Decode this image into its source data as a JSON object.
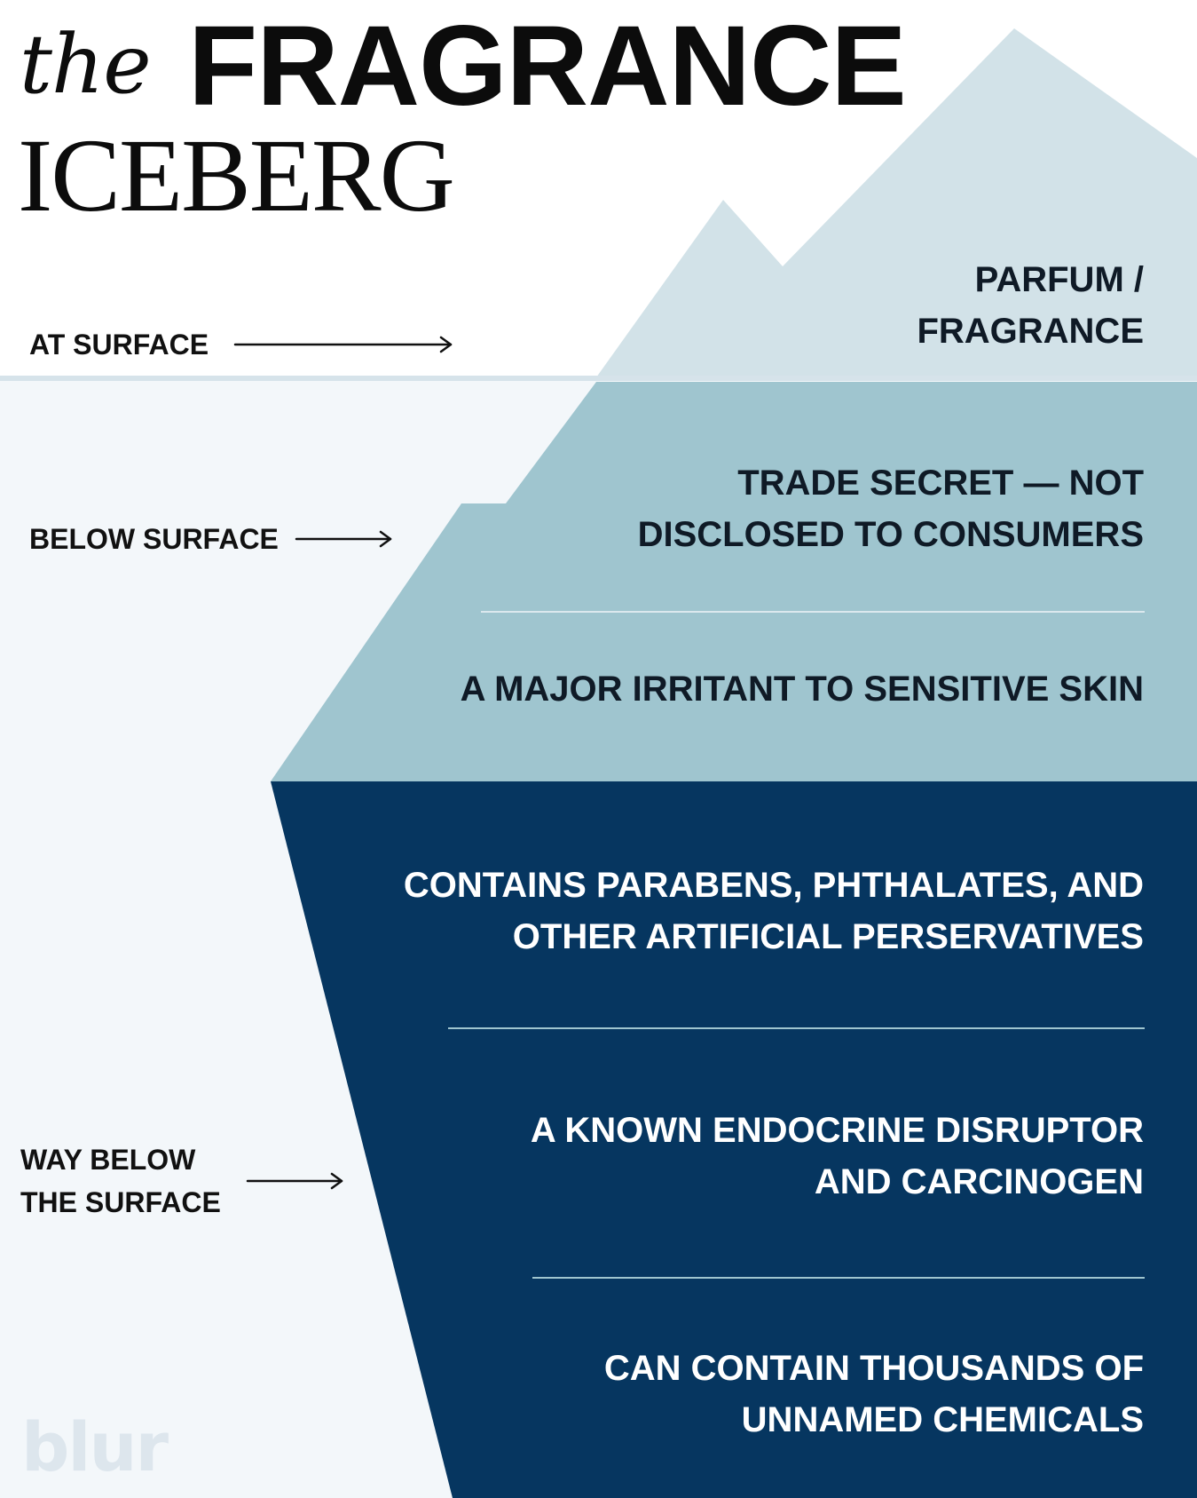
{
  "title": {
    "the": "the",
    "fragrance": "FRAGRANCE",
    "iceberg": "ICEBERG"
  },
  "levels": {
    "at_surface": "AT SURFACE",
    "below_surface": "BELOW SURFACE",
    "way_below_line1": "WAY BELOW",
    "way_below_line2": "THE SURFACE"
  },
  "tip": {
    "line1": "PARFUM /",
    "line2": "FRAGRANCE"
  },
  "below": {
    "item1_line1": "TRADE SECRET — NOT",
    "item1_line2": "DISCLOSED TO CONSUMERS",
    "item2": "A MAJOR IRRITANT TO SENSITIVE SKIN"
  },
  "deep": {
    "item1_line1": "CONTAINS PARABENS, PHTHALATES, AND",
    "item1_line2": "OTHER ARTIFICIAL PERSERVATIVES",
    "item2_line1": "A KNOWN ENDOCRINE DISRUPTOR",
    "item2_line2": "AND CARCINOGEN",
    "item3_line1": "CAN CONTAIN THOUSANDS OF",
    "item3_line2": "UNNAMED CHEMICALS"
  },
  "brand": "blur",
  "colors": {
    "sky": "#ffffff",
    "water": "#f3f7fa",
    "tip": "#d2e2e8",
    "shallow": "#9fc5cf",
    "deep": "#063660",
    "text_dark": "#0f1a26",
    "text_light": "#ffffff",
    "brand": "#dde6ed"
  }
}
